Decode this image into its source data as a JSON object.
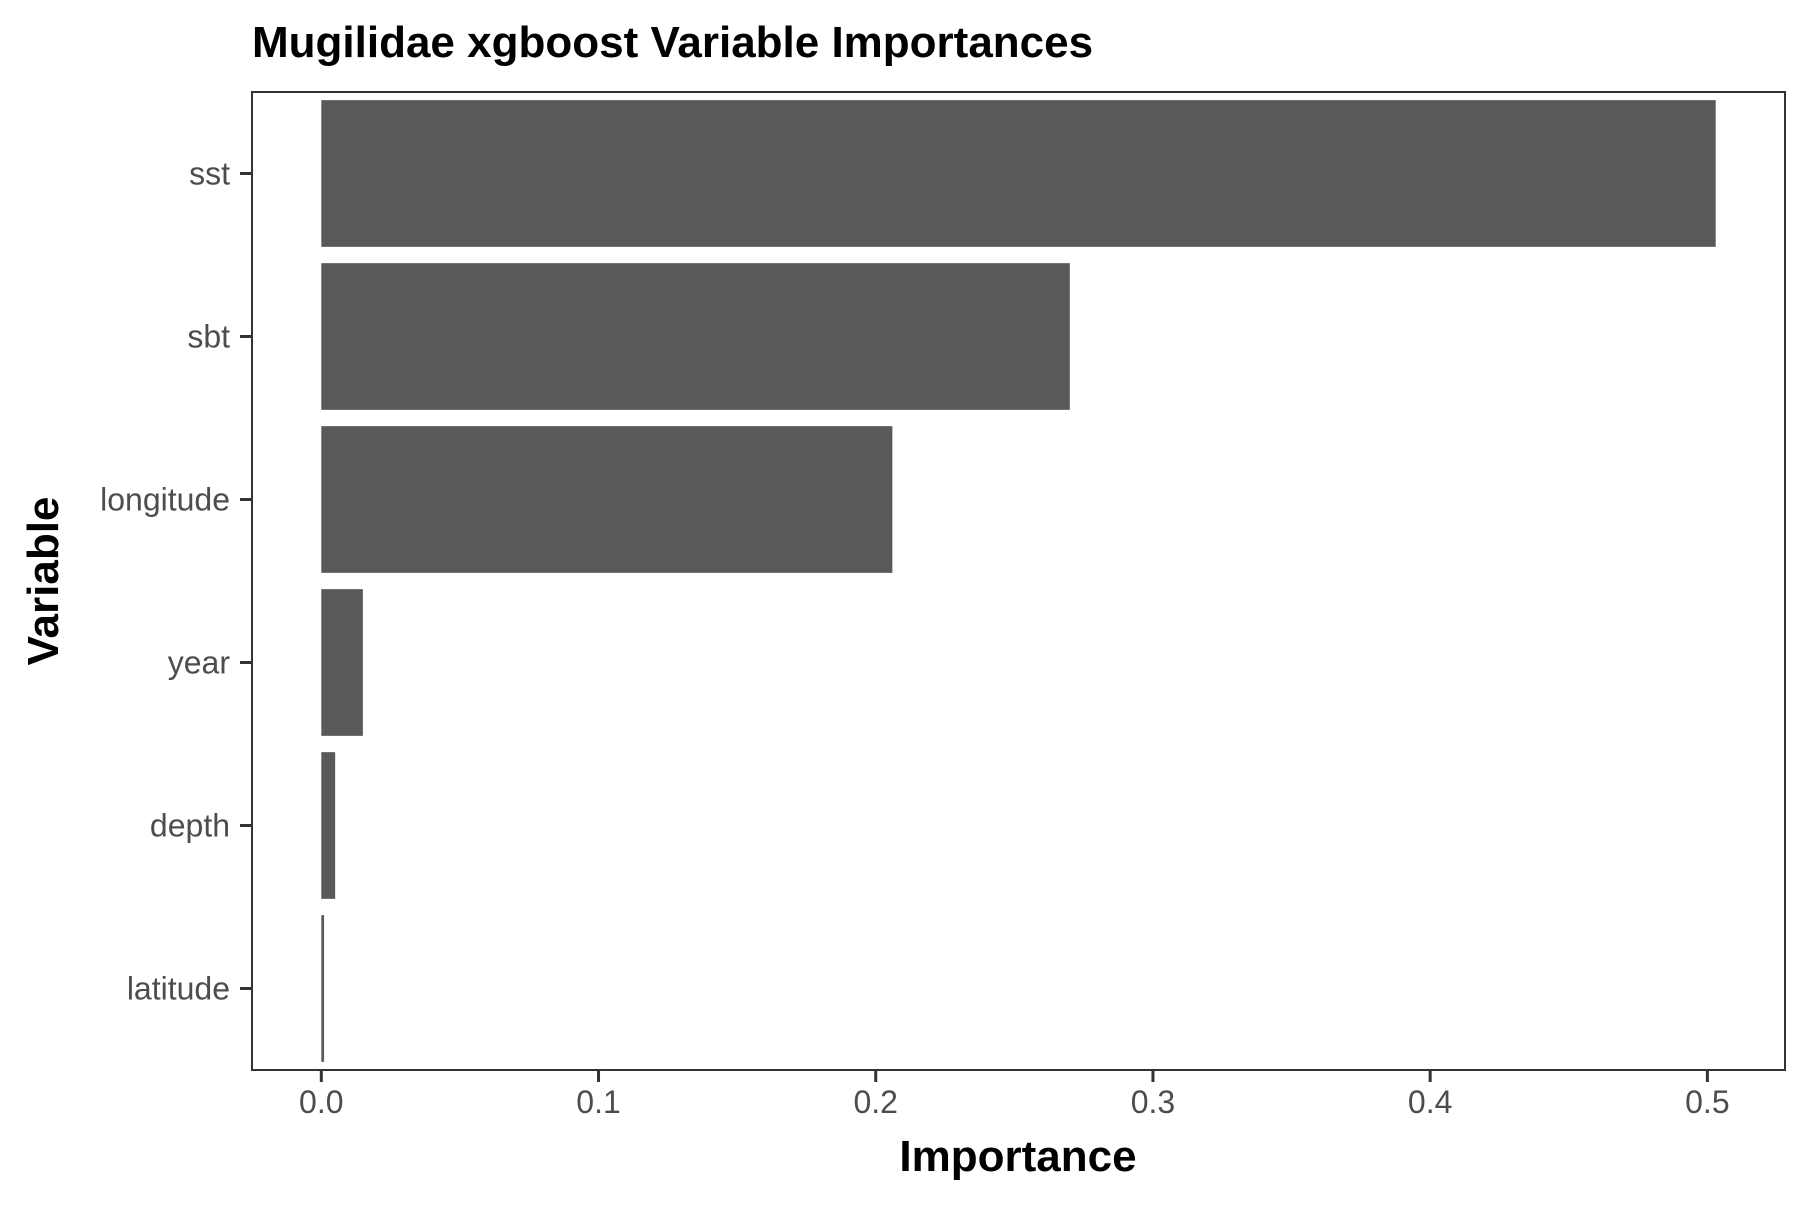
{
  "chart_data": {
    "type": "bar",
    "orientation": "horizontal",
    "title": "Mugilidae xgboost Variable Importances",
    "xlabel": "Importance",
    "ylabel": "Variable",
    "categories": [
      "sst",
      "sbt",
      "longitude",
      "year",
      "depth",
      "latitude"
    ],
    "values": [
      0.503,
      0.27,
      0.206,
      0.015,
      0.005,
      0.001
    ],
    "xlim": [
      -0.025,
      0.528
    ],
    "xticks": [
      0.0,
      0.1,
      0.2,
      0.3,
      0.4,
      0.5
    ],
    "xtick_labels": [
      "0.0",
      "0.1",
      "0.2",
      "0.3",
      "0.4",
      "0.5"
    ],
    "grid": false,
    "legend": "none",
    "bar_color": "#595959",
    "panel_border_color": "#333333"
  }
}
